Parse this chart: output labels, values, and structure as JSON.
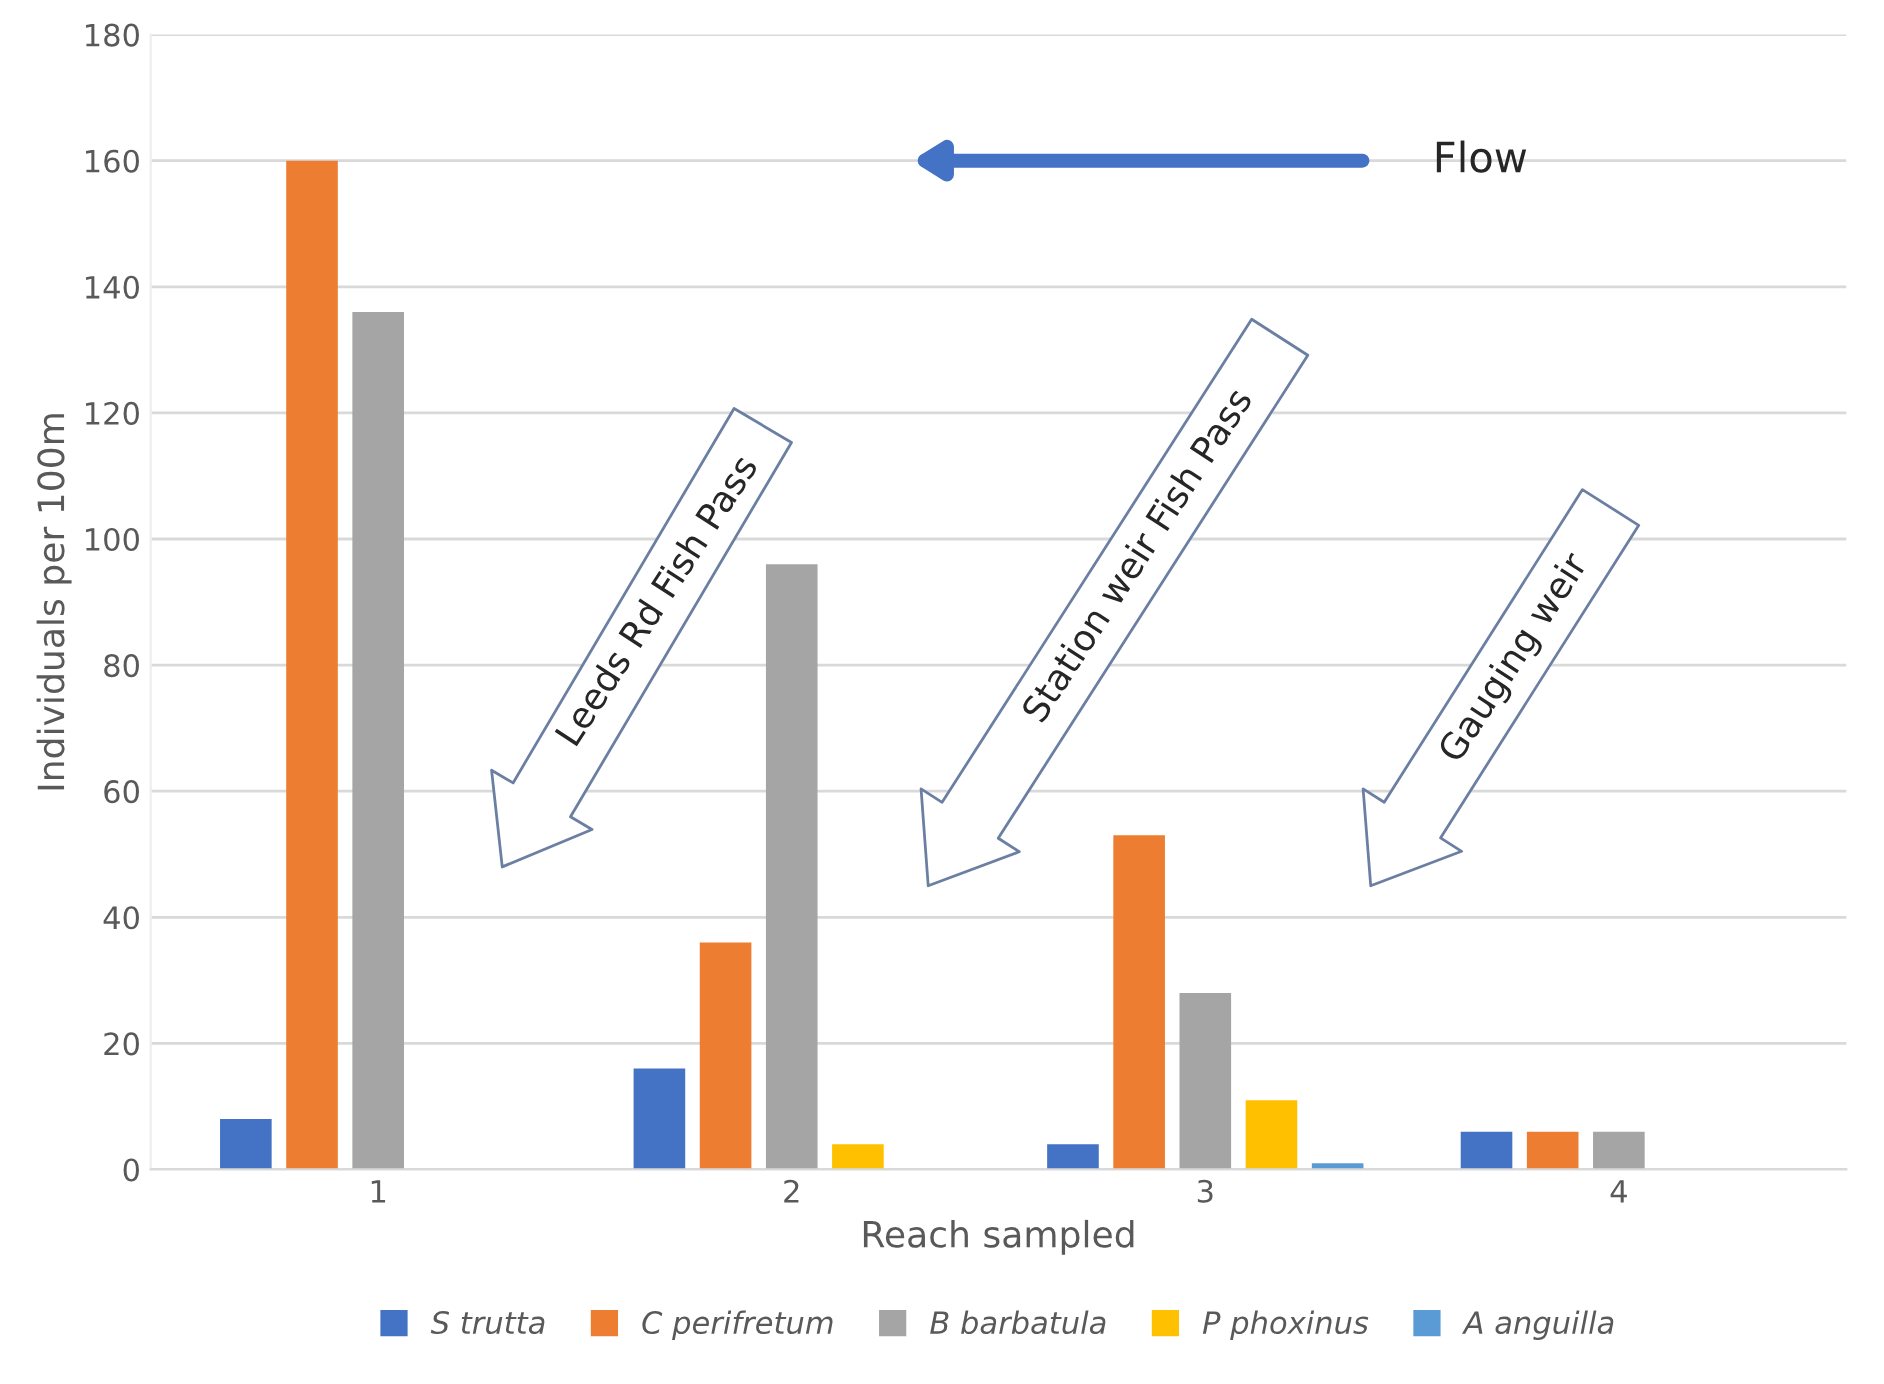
{
  "chart_data": {
    "type": "bar",
    "xlabel": "Reach sampled",
    "ylabel": "Individuals per 100m",
    "categories": [
      "1",
      "2",
      "3",
      "4"
    ],
    "series": [
      {
        "name": "S trutta",
        "color": "#4472c4",
        "values": [
          8,
          16,
          4,
          6
        ]
      },
      {
        "name": "C perifretum",
        "color": "#ed7d31",
        "values": [
          160,
          36,
          53,
          6
        ]
      },
      {
        "name": "B barbatula",
        "color": "#a5a5a5",
        "values": [
          136,
          96,
          28,
          6
        ]
      },
      {
        "name": "P phoxinus",
        "color": "#ffc000",
        "values": [
          0,
          4,
          11,
          0
        ]
      },
      {
        "name": "A anguilla",
        "color": "#5b9bd5",
        "values": [
          0,
          0,
          1,
          0
        ]
      }
    ],
    "ylim": [
      0,
      180
    ],
    "yticks": [
      0,
      20,
      40,
      60,
      80,
      100,
      120,
      140,
      160,
      180
    ],
    "grid": "y",
    "legend": "bottom",
    "annotations": [
      "Flow",
      "Leeds Rd Fish Pass",
      "Station weir Fish Pass",
      "Gauging weir"
    ]
  }
}
